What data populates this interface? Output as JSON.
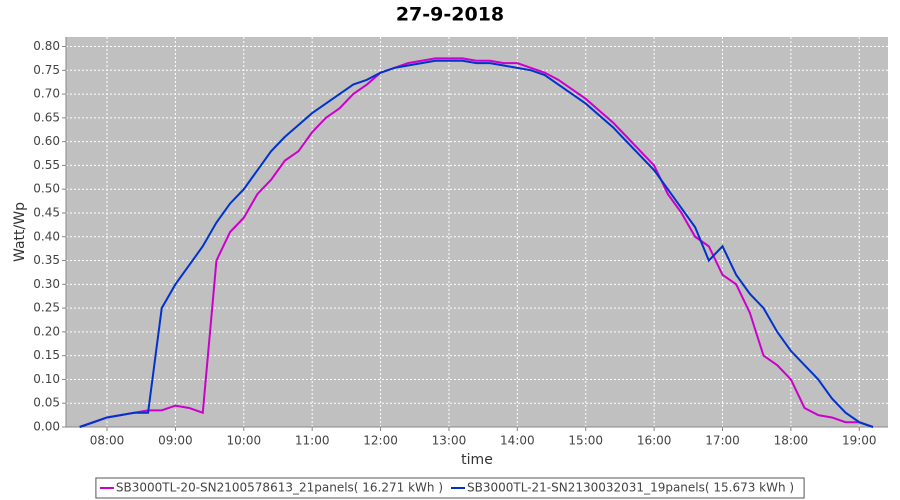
{
  "chart_data": {
    "type": "line",
    "title": "27-9-2018",
    "x_label": "time",
    "y_label": "Watt/Wp",
    "x": [
      7.6,
      7.8,
      8.0,
      8.2,
      8.4,
      8.6,
      8.8,
      9.0,
      9.2,
      9.4,
      9.6,
      9.8,
      10.0,
      10.2,
      10.4,
      10.6,
      10.8,
      11.0,
      11.2,
      11.4,
      11.6,
      11.8,
      12.0,
      12.2,
      12.4,
      12.6,
      12.8,
      13.0,
      13.2,
      13.4,
      13.6,
      13.8,
      14.0,
      14.2,
      14.4,
      14.6,
      14.8,
      15.0,
      15.2,
      15.4,
      15.6,
      15.8,
      16.0,
      16.2,
      16.4,
      16.6,
      16.8,
      17.0,
      17.2,
      17.4,
      17.6,
      17.8,
      18.0,
      18.2,
      18.4,
      18.6,
      18.8,
      19.0,
      19.2
    ],
    "series": [
      {
        "name": "SB3000TL-20-SN2100578613_21panels( 16.271 kWh )",
        "color": "#cc00cc",
        "values": [
          0,
          0.01,
          0.02,
          0.025,
          0.03,
          0.035,
          0.035,
          0.045,
          0.04,
          0.03,
          0.35,
          0.41,
          0.44,
          0.49,
          0.52,
          0.56,
          0.58,
          0.62,
          0.65,
          0.67,
          0.7,
          0.72,
          0.745,
          0.755,
          0.765,
          0.77,
          0.775,
          0.775,
          0.775,
          0.77,
          0.77,
          0.765,
          0.765,
          0.755,
          0.745,
          0.73,
          0.71,
          0.69,
          0.665,
          0.64,
          0.61,
          0.58,
          0.55,
          0.49,
          0.45,
          0.4,
          0.38,
          0.32,
          0.3,
          0.24,
          0.15,
          0.13,
          0.1,
          0.04,
          0.025,
          0.02,
          0.01,
          0.01,
          0
        ]
      },
      {
        "name": "SB3000TL-21-SN2130032031_19panels( 15.673 kWh )",
        "color": "#0033cc",
        "values": [
          0,
          0.01,
          0.02,
          0.025,
          0.03,
          0.03,
          0.25,
          0.3,
          0.34,
          0.38,
          0.43,
          0.47,
          0.5,
          0.54,
          0.58,
          0.61,
          0.635,
          0.66,
          0.68,
          0.7,
          0.72,
          0.73,
          0.745,
          0.755,
          0.76,
          0.765,
          0.77,
          0.77,
          0.77,
          0.765,
          0.765,
          0.76,
          0.755,
          0.75,
          0.74,
          0.72,
          0.7,
          0.68,
          0.655,
          0.63,
          0.6,
          0.57,
          0.54,
          0.5,
          0.46,
          0.42,
          0.35,
          0.38,
          0.32,
          0.28,
          0.25,
          0.2,
          0.16,
          0.13,
          0.1,
          0.06,
          0.03,
          0.01,
          0
        ]
      }
    ],
    "xlim": [
      7.4,
      19.42
    ],
    "ylim": [
      0,
      0.82
    ],
    "xticks": [
      {
        "value": 8,
        "label": "08:00"
      },
      {
        "value": 9,
        "label": "09:00"
      },
      {
        "value": 10,
        "label": "10:00"
      },
      {
        "value": 11,
        "label": "11:00"
      },
      {
        "value": 12,
        "label": "12:00"
      },
      {
        "value": 13,
        "label": "13:00"
      },
      {
        "value": 14,
        "label": "14:00"
      },
      {
        "value": 15,
        "label": "15:00"
      },
      {
        "value": 16,
        "label": "16:00"
      },
      {
        "value": 17,
        "label": "17:00"
      },
      {
        "value": 18,
        "label": "18:00"
      },
      {
        "value": 19,
        "label": "19:00"
      }
    ],
    "yticks": [
      {
        "value": 0,
        "label": "0.00"
      },
      0.05,
      {
        "value": 0.1,
        "label": "0.10"
      },
      0.15,
      {
        "value": 0.2,
        "label": "0.20"
      },
      0.25,
      {
        "value": 0.3,
        "label": "0.30"
      },
      0.35,
      {
        "value": 0.4,
        "label": "0.40"
      },
      0.45,
      {
        "value": 0.5,
        "label": "0.50"
      },
      0.55,
      {
        "value": 0.6,
        "label": "0.60"
      },
      0.65,
      {
        "value": 0.7,
        "label": "0.70"
      },
      0.75,
      {
        "value": 0.8,
        "label": "0.80"
      }
    ],
    "grid": true,
    "legend": "bottom"
  }
}
